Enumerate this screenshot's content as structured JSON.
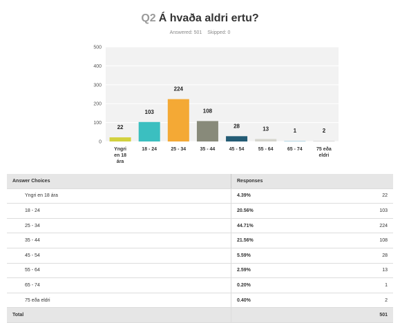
{
  "question": {
    "number": "Q2",
    "title": "Á hvaða aldri ertu?",
    "answered": "Answered: 501",
    "skipped": "Skipped: 0"
  },
  "chart_data": {
    "type": "bar",
    "categories": [
      [
        "Yngri",
        "en 18",
        "ára"
      ],
      [
        "18 - 24"
      ],
      [
        "25 - 34"
      ],
      [
        "35 - 44"
      ],
      [
        "45 - 54"
      ],
      [
        "55 - 64"
      ],
      [
        "65 - 74"
      ],
      [
        "75 eða",
        "eldri"
      ]
    ],
    "values": [
      22,
      103,
      224,
      108,
      28,
      13,
      1,
      2
    ],
    "colors": [
      "#d2d13f",
      "#3bbfc0",
      "#f4a935",
      "#888a7a",
      "#235b74",
      "#d5d5cd",
      "#b1d6e4",
      "#d9d9d9"
    ],
    "ylim": [
      0,
      500
    ],
    "yticks": [
      0,
      100,
      200,
      300,
      400,
      500
    ],
    "grid": true,
    "plot_background": "#f2f2f2",
    "title": "",
    "xlabel": "",
    "ylabel": ""
  },
  "table": {
    "headers": [
      "Answer Choices",
      "Responses"
    ],
    "rows": [
      {
        "choice": "Yngri en 18 ára",
        "percent": "4.39%",
        "count": "22"
      },
      {
        "choice": "18 - 24",
        "percent": "20.56%",
        "count": "103"
      },
      {
        "choice": "25 - 34",
        "percent": "44.71%",
        "count": "224"
      },
      {
        "choice": "35 - 44",
        "percent": "21.56%",
        "count": "108"
      },
      {
        "choice": "45 - 54",
        "percent": "5.59%",
        "count": "28"
      },
      {
        "choice": "55 - 64",
        "percent": "2.59%",
        "count": "13"
      },
      {
        "choice": "65 - 74",
        "percent": "0.20%",
        "count": "1"
      },
      {
        "choice": "75 eða eldri",
        "percent": "0.40%",
        "count": "2"
      }
    ],
    "total_label": "Total",
    "total_count": "501"
  }
}
